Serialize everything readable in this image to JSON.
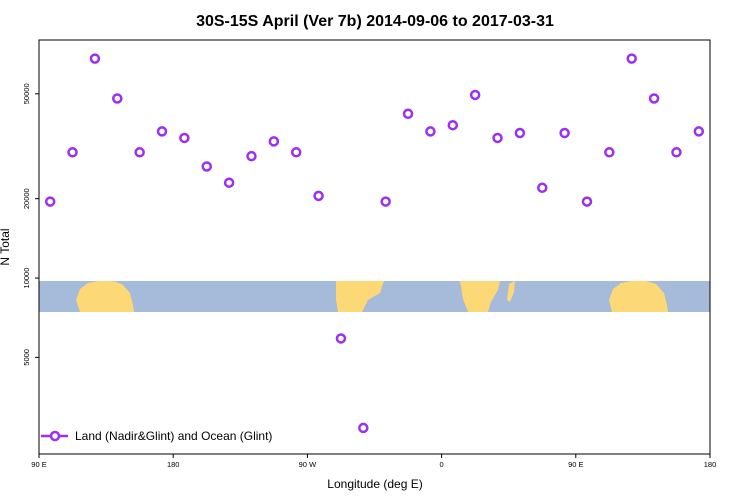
{
  "chart_data": {
    "type": "scatter",
    "title": "30S-15S April (Ver 7b)   2014-09-06 to 2017-03-31",
    "xlabel": "Longitude (deg E)",
    "ylabel": "N Total",
    "y_scale": "log",
    "xlim": [
      90,
      540
    ],
    "ylim": [
      2150,
      80000
    ],
    "x_ticks": [
      {
        "value": 90,
        "label": "90 E"
      },
      {
        "value": 180,
        "label": "180"
      },
      {
        "value": 270,
        "label": "90 W"
      },
      {
        "value": 360,
        "label": "0"
      },
      {
        "value": 450,
        "label": "90 E"
      },
      {
        "value": 540,
        "label": "180"
      }
    ],
    "y_ticks": [
      {
        "value": 5000,
        "label": "5000"
      },
      {
        "value": 10000,
        "label": "10000"
      },
      {
        "value": 20000,
        "label": "20000"
      },
      {
        "value": 50000,
        "label": "50000"
      }
    ],
    "grid": false,
    "legend_position": "bottom-left",
    "colors": {
      "marker": "#9b30f0",
      "ocean": "#a5bbd9",
      "land": "#fcd876"
    },
    "series": [
      {
        "name": "Land (Nadir&Glint) and Ocean (Glint)",
        "x": [
          97.5,
          112.5,
          127.5,
          142.5,
          157.5,
          172.5,
          187.5,
          202.5,
          217.5,
          232.5,
          247.5,
          262.5,
          277.5,
          292.5,
          307.5,
          322.5,
          337.5,
          352.5,
          367.5,
          382.5,
          397.5,
          412.5,
          427.5,
          442.5,
          457.5,
          472.5,
          487.5,
          502.5,
          517.5,
          532.5
        ],
        "y": [
          19500,
          30000,
          68000,
          48000,
          30000,
          36000,
          34000,
          26500,
          23000,
          29000,
          33000,
          30000,
          20500,
          5900,
          2700,
          19500,
          42000,
          36000,
          38000,
          49500,
          34000,
          35500,
          22000,
          35500,
          19500,
          30000,
          68000,
          48000,
          30000,
          36000
        ]
      }
    ]
  }
}
